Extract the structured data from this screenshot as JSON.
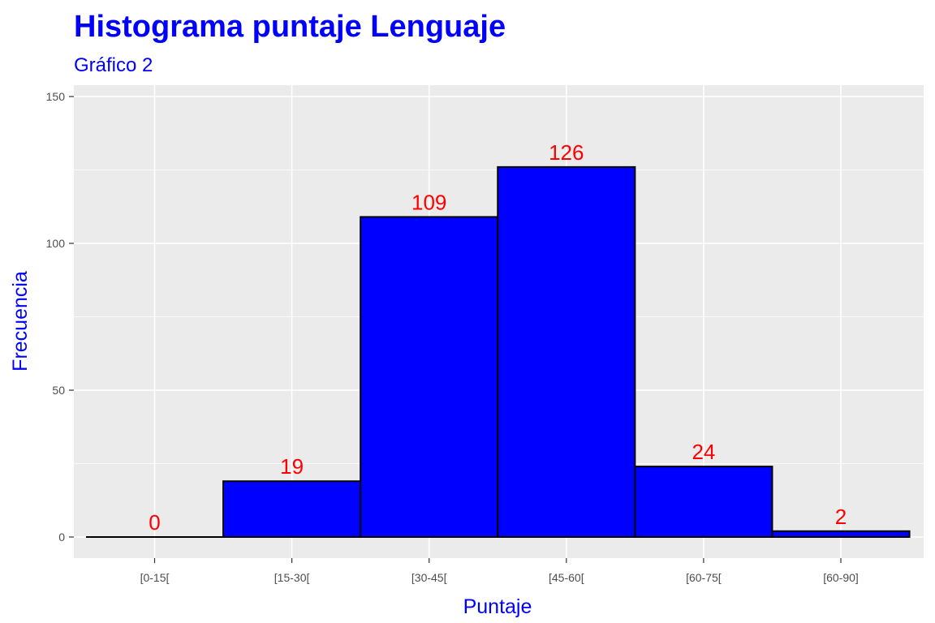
{
  "chart_data": {
    "type": "bar",
    "title": "Histograma puntaje Lenguaje",
    "subtitle": "Gráfico 2",
    "xlabel": "Puntaje",
    "ylabel": "Frecuencia",
    "categories": [
      "[0-15[",
      "[15-30[",
      "[30-45[",
      "[45-60[",
      "[60-75[",
      "[60-90]"
    ],
    "values": [
      0,
      19,
      109,
      126,
      24,
      2
    ],
    "data_labels": [
      "0",
      "19",
      "109",
      "126",
      "24",
      "2"
    ],
    "ylim": [
      0,
      150
    ],
    "yticks": [
      0,
      50,
      100,
      150
    ],
    "grid": true,
    "colors": {
      "bar_fill": "#0000ff",
      "bar_stroke": "#000000",
      "data_label": "#ff0000",
      "title": "#0000ff",
      "axis_title": "#0000ff",
      "panel_background": "#ebebeb",
      "grid": "#ffffff"
    }
  }
}
